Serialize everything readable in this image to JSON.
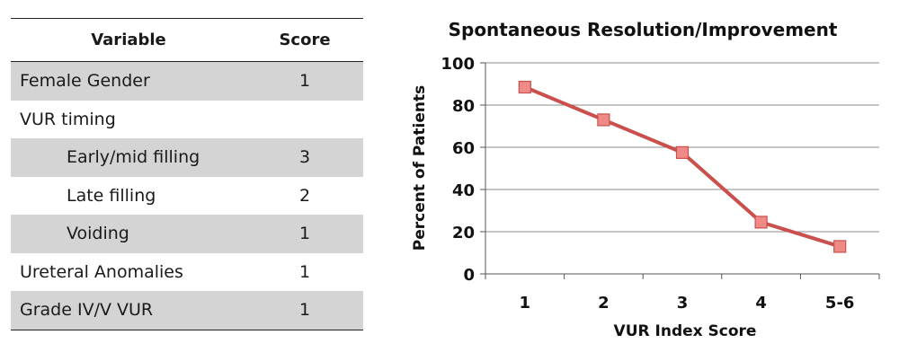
{
  "table": {
    "headers": {
      "variable": "Variable",
      "score": "Score"
    },
    "rows": [
      {
        "variable": "Female Gender",
        "score": "1",
        "shaded": true,
        "indent": false
      },
      {
        "variable": "VUR timing",
        "score": "",
        "shaded": false,
        "indent": false
      },
      {
        "variable": "Early/mid filling",
        "score": "3",
        "shaded": true,
        "indent": true
      },
      {
        "variable": "Late filling",
        "score": "2",
        "shaded": false,
        "indent": true
      },
      {
        "variable": "Voiding",
        "score": "1",
        "shaded": true,
        "indent": true
      },
      {
        "variable": "Ureteral Anomalies",
        "score": "1",
        "shaded": false,
        "indent": false
      },
      {
        "variable": "Grade IV/V VUR",
        "score": "1",
        "shaded": true,
        "indent": false
      }
    ]
  },
  "chart_data": {
    "type": "line",
    "title": "Spontaneous Resolution/Improvement",
    "xlabel": "VUR Index Score",
    "ylabel": "Percent of Patients",
    "categories": [
      "1",
      "2",
      "3",
      "4",
      "5-6"
    ],
    "series": [
      {
        "values": [
          88.5,
          73,
          57.5,
          24.5,
          13
        ]
      }
    ],
    "ylim": [
      0,
      100
    ],
    "yticks": [
      0,
      20,
      40,
      60,
      80,
      100
    ],
    "grid": true,
    "legend": "none",
    "colors": {
      "line": "#c9504d",
      "marker_fill": "#f08a86",
      "marker_stroke": "#c9504d",
      "grid": "#8c8c8c"
    }
  }
}
